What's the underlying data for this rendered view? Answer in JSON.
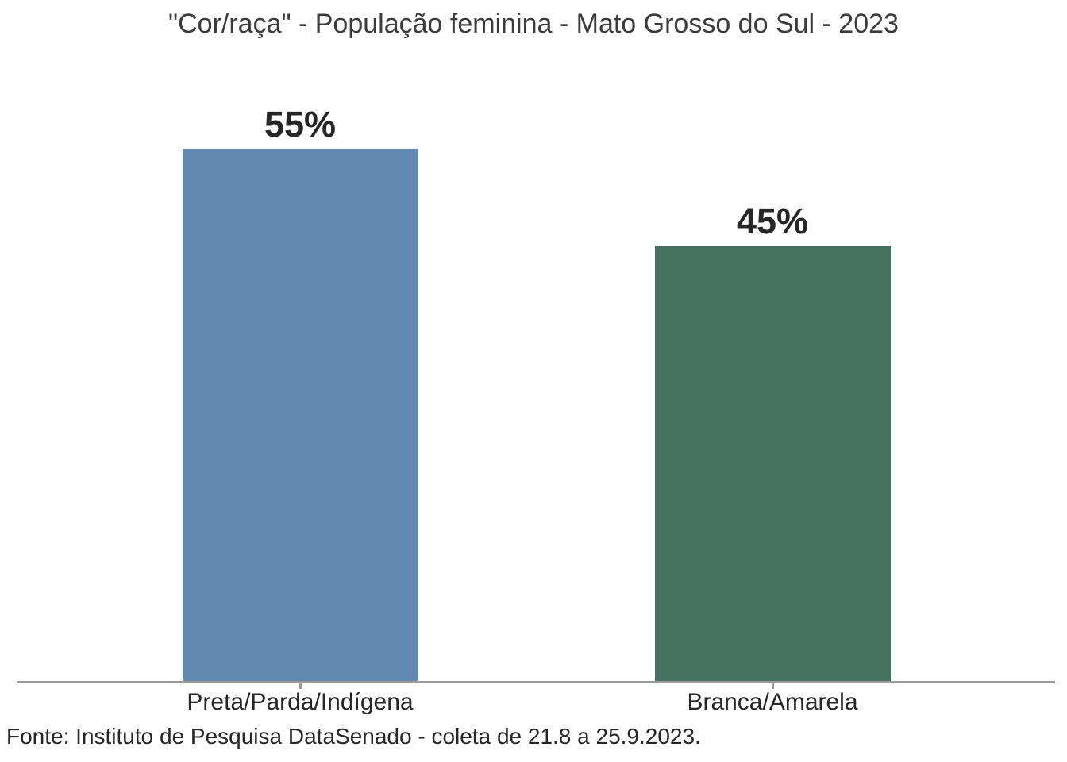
{
  "chart_data": {
    "type": "bar",
    "title": "\"Cor/raça\" - População feminina - Mato Grosso do Sul - 2023",
    "categories": [
      "Preta/Parda/Indígena",
      "Branca/Amarela"
    ],
    "values": [
      55,
      45
    ],
    "value_labels": [
      "55%",
      "45%"
    ],
    "bar_colors": [
      "#6289AF",
      "#467361"
    ],
    "xlabel": "",
    "ylabel": "",
    "ylim": [
      0,
      62
    ],
    "grid": false,
    "legend": false,
    "y_axis_visible": false,
    "source_note": "Fonte: Instituto de Pesquisa DataSenado - coleta de 21.8 a 25.9.2023."
  },
  "colors": {
    "background": "#ffffff",
    "title_text": "#3b3b3b",
    "label_text": "#262626",
    "axis_line": "#9a9a9a"
  }
}
